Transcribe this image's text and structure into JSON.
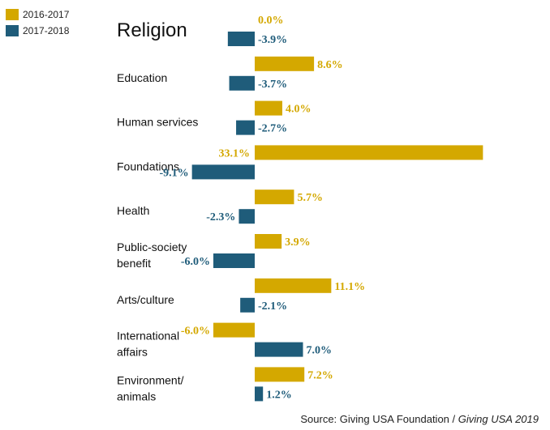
{
  "colors": {
    "series_2016_2017": "#d4a800",
    "series_2017_2018": "#1f5c7a"
  },
  "legend": [
    {
      "label": "2016-2017",
      "color": "#d4a800"
    },
    {
      "label": "2017-2018",
      "color": "#1f5c7a"
    }
  ],
  "source": {
    "prefix": "Source: Giving USA Foundation / ",
    "italic": "Giving USA 2019"
  },
  "chart_data": {
    "type": "bar",
    "orientation": "horizontal",
    "categories": [
      [
        "Religion"
      ],
      [
        "Education"
      ],
      [
        "Human services"
      ],
      [
        "Foundations"
      ],
      [
        "Health"
      ],
      [
        "Public-society",
        "benefit"
      ],
      [
        "Arts/culture"
      ],
      [
        "International",
        "affairs"
      ],
      [
        "Environment/",
        "animals"
      ]
    ],
    "series": [
      {
        "name": "2016-2017",
        "values": [
          0.0,
          8.6,
          4.0,
          33.1,
          5.7,
          3.9,
          11.1,
          -6.0,
          7.2
        ],
        "labels": [
          "0.0%",
          "8.6%",
          "4.0%",
          "33.1%",
          "5.7%",
          "3.9%",
          "11.1%",
          "-6.0%",
          "7.2%"
        ]
      },
      {
        "name": "2017-2018",
        "values": [
          -3.9,
          -3.7,
          -2.7,
          -9.1,
          -2.3,
          -6.0,
          -2.1,
          7.0,
          1.2
        ],
        "labels": [
          "-3.9%",
          "-3.7%",
          "-2.7%",
          "-9.1%",
          "-2.3%",
          "-6.0%",
          "-2.1%",
          "7.0%",
          "1.2%"
        ]
      }
    ],
    "units": "%",
    "legend_position": "top-left",
    "grid": false
  }
}
